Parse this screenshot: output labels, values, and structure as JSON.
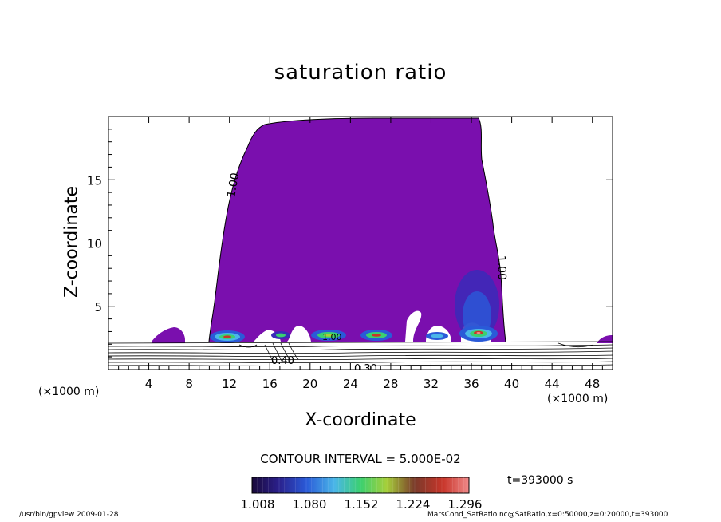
{
  "chart_data": {
    "type": "heatmap",
    "title": "saturation ratio",
    "xlabel": "X-coordinate",
    "ylabel": "Z-coordinate",
    "x_unit_label": "(×1000 m)",
    "xlim": [
      0,
      50
    ],
    "ylim": [
      0,
      20
    ],
    "x_ticks": [
      4,
      8,
      12,
      16,
      20,
      24,
      28,
      32,
      36,
      40,
      44,
      48
    ],
    "y_ticks": [
      5,
      10,
      15
    ],
    "contour_interval_text": "CONTOUR INTERVAL = 5.000E-02",
    "contour_labels": [
      "1.00",
      "1.00",
      "1.00",
      "0.40",
      "0.30"
    ],
    "colorbar": {
      "ticks": [
        "1.008",
        "1.080",
        "1.152",
        "1.224",
        "1.296"
      ]
    },
    "time_text": "t=393000 s",
    "footer_left": "/usr/bin/gpview   2009-01-28",
    "footer_right": "MarsCond_SatRatio.nc@SatRatio,x=0:50000,z=0:20000,t=393000"
  },
  "colors": {
    "cloud": "#7a0fae",
    "background": "#ffffff",
    "lines": "#000000"
  }
}
